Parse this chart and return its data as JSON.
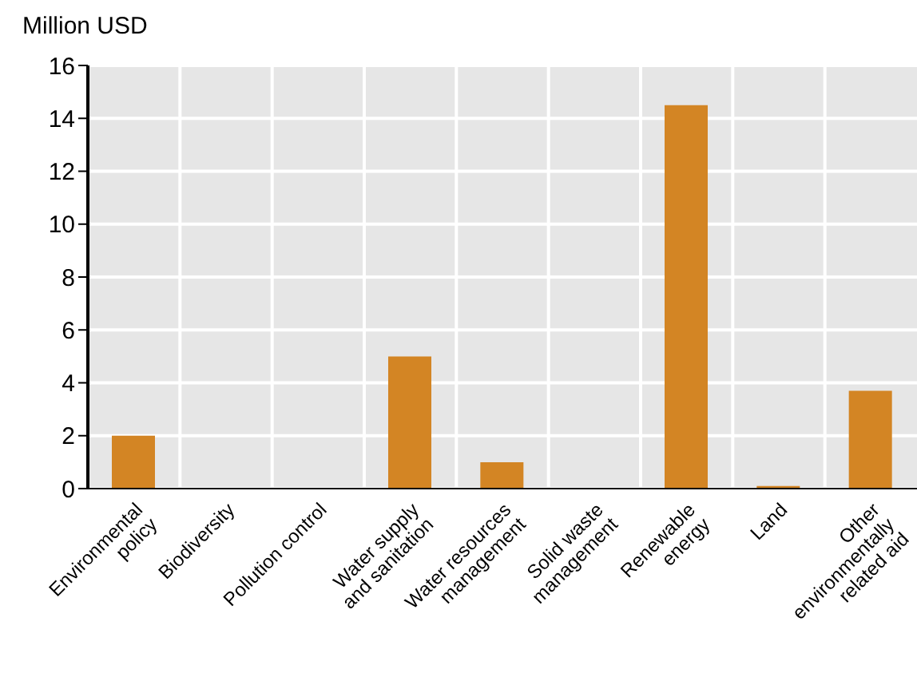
{
  "chart_data": {
    "type": "bar",
    "ylabel": "Million USD",
    "categories": [
      "Environmental\npolicy",
      "Biodiversity",
      "Pollution control",
      "Water supply\nand sanitation",
      "Water resources\nmanagement",
      "Solid waste\nmanagement",
      "Renewable\nenergy",
      "Land",
      "Other\nenvironmentally\nrelated aid"
    ],
    "values": [
      2.0,
      0,
      0,
      5.0,
      1.0,
      0,
      14.5,
      0.1,
      3.7
    ],
    "color": "#d38524",
    "ylim": [
      0,
      16
    ],
    "yticks": [
      0,
      2,
      4,
      6,
      8,
      10,
      12,
      14,
      16
    ],
    "grid": true
  }
}
